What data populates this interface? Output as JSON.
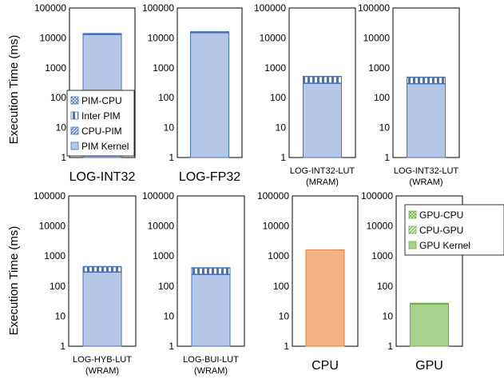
{
  "figure": {
    "ylabel_row1": "Execution Time (ms)",
    "ylabel_row2": "Execution Time (ms)"
  },
  "chart_data": [
    {
      "type": "bar",
      "stacked": true,
      "yscale": "log",
      "ylim": [
        1,
        100000
      ],
      "yticks": [
        "1",
        "10",
        "100",
        "1000",
        "10000",
        "100000"
      ],
      "title_lines": [
        "LOG-INT32"
      ],
      "title_style": "big",
      "series": [
        {
          "name": "PIM Kernel",
          "value": 13000,
          "color": "#b4c7e7"
        },
        {
          "name": "CPU-PIM",
          "value": 150,
          "color": "#b4c7e7"
        },
        {
          "name": "Inter PIM",
          "value": 800,
          "color": "#b4c7e7"
        },
        {
          "name": "PIM-CPU",
          "value": 150,
          "color": "#b4c7e7"
        }
      ],
      "legend": {
        "placement": "lower-left",
        "entries": [
          "PIM-CPU",
          "Inter PIM",
          "CPU-PIM",
          "PIM Kernel"
        ]
      }
    },
    {
      "type": "bar",
      "stacked": true,
      "yscale": "log",
      "ylim": [
        1,
        100000
      ],
      "yticks": [
        "1",
        "10",
        "100",
        "1000",
        "10000",
        "100000"
      ],
      "title_lines": [
        "LOG-FP32"
      ],
      "title_style": "big",
      "series": [
        {
          "name": "PIM Kernel",
          "value": 15000,
          "color": "#b4c7e7"
        },
        {
          "name": "CPU-PIM",
          "value": 150,
          "color": "#b4c7e7"
        },
        {
          "name": "Inter PIM",
          "value": 800,
          "color": "#b4c7e7"
        },
        {
          "name": "PIM-CPU",
          "value": 150,
          "color": "#b4c7e7"
        }
      ]
    },
    {
      "type": "bar",
      "stacked": true,
      "yscale": "log",
      "ylim": [
        1,
        100000
      ],
      "yticks": [
        "1",
        "10",
        "100",
        "1000",
        "10000",
        "100000"
      ],
      "title_lines": [
        "LOG-INT32-LUT",
        "(MRAM)"
      ],
      "title_style": "small",
      "series": [
        {
          "name": "PIM Kernel",
          "value": 300,
          "color": "#b4c7e7"
        },
        {
          "name": "CPU-PIM",
          "value": 10,
          "color": "#b4c7e7"
        },
        {
          "name": "Inter PIM",
          "value": 200,
          "color": "#b4c7e7"
        },
        {
          "name": "PIM-CPU",
          "value": 10,
          "color": "#b4c7e7"
        }
      ]
    },
    {
      "type": "bar",
      "stacked": true,
      "yscale": "log",
      "ylim": [
        1,
        100000
      ],
      "yticks": [
        "1",
        "10",
        "100",
        "1000",
        "10000",
        "100000"
      ],
      "title_lines": [
        "LOG-INT32-LUT",
        "(WRAM)"
      ],
      "title_style": "small",
      "series": [
        {
          "name": "PIM Kernel",
          "value": 290,
          "color": "#b4c7e7"
        },
        {
          "name": "CPU-PIM",
          "value": 10,
          "color": "#b4c7e7"
        },
        {
          "name": "Inter PIM",
          "value": 180,
          "color": "#b4c7e7"
        },
        {
          "name": "PIM-CPU",
          "value": 10,
          "color": "#b4c7e7"
        }
      ]
    },
    {
      "type": "bar",
      "stacked": true,
      "yscale": "log",
      "ylim": [
        1,
        100000
      ],
      "yticks": [
        "1",
        "10",
        "100",
        "1000",
        "10000",
        "100000"
      ],
      "title_lines": [
        "LOG-HYB-LUT",
        "(WRAM)"
      ],
      "title_style": "small",
      "series": [
        {
          "name": "PIM Kernel",
          "value": 290,
          "color": "#b4c7e7"
        },
        {
          "name": "CPU-PIM",
          "value": 10,
          "color": "#b4c7e7"
        },
        {
          "name": "Inter PIM",
          "value": 140,
          "color": "#b4c7e7"
        },
        {
          "name": "PIM-CPU",
          "value": 10,
          "color": "#b4c7e7"
        }
      ]
    },
    {
      "type": "bar",
      "stacked": true,
      "yscale": "log",
      "ylim": [
        1,
        100000
      ],
      "yticks": [
        "1",
        "10",
        "100",
        "1000",
        "10000",
        "100000"
      ],
      "title_lines": [
        "LOG-BUI-LUT",
        "(WRAM)"
      ],
      "title_style": "small",
      "series": [
        {
          "name": "PIM Kernel",
          "value": 240,
          "color": "#b4c7e7"
        },
        {
          "name": "CPU-PIM",
          "value": 10,
          "color": "#b4c7e7"
        },
        {
          "name": "Inter PIM",
          "value": 150,
          "color": "#b4c7e7"
        },
        {
          "name": "PIM-CPU",
          "value": 10,
          "color": "#b4c7e7"
        }
      ]
    },
    {
      "type": "bar",
      "stacked": false,
      "yscale": "log",
      "ylim": [
        1,
        100000
      ],
      "yticks": [
        "1",
        "10",
        "100",
        "1000",
        "10000",
        "100000"
      ],
      "title_lines": [
        "CPU"
      ],
      "title_style": "big",
      "series": [
        {
          "value": 1600,
          "color": "#f4b183"
        }
      ]
    },
    {
      "type": "bar",
      "stacked": true,
      "yscale": "log",
      "ylim": [
        1,
        100000
      ],
      "yticks": [
        "1",
        "10",
        "100",
        "1000",
        "10000",
        "100000"
      ],
      "title_lines": [
        "GPU"
      ],
      "title_style": "big",
      "series": [
        {
          "name": "GPU Kernel",
          "value": 25,
          "color": "#a9d18e"
        },
        {
          "name": "CPU-GPU",
          "value": 1,
          "color": "#a9d18e"
        },
        {
          "name": "GPU-CPU",
          "value": 1,
          "color": "#a9d18e"
        }
      ],
      "legend": {
        "placement": "top-right",
        "entries": [
          "GPU-CPU",
          "CPU-GPU",
          "GPU Kernel"
        ]
      }
    }
  ]
}
